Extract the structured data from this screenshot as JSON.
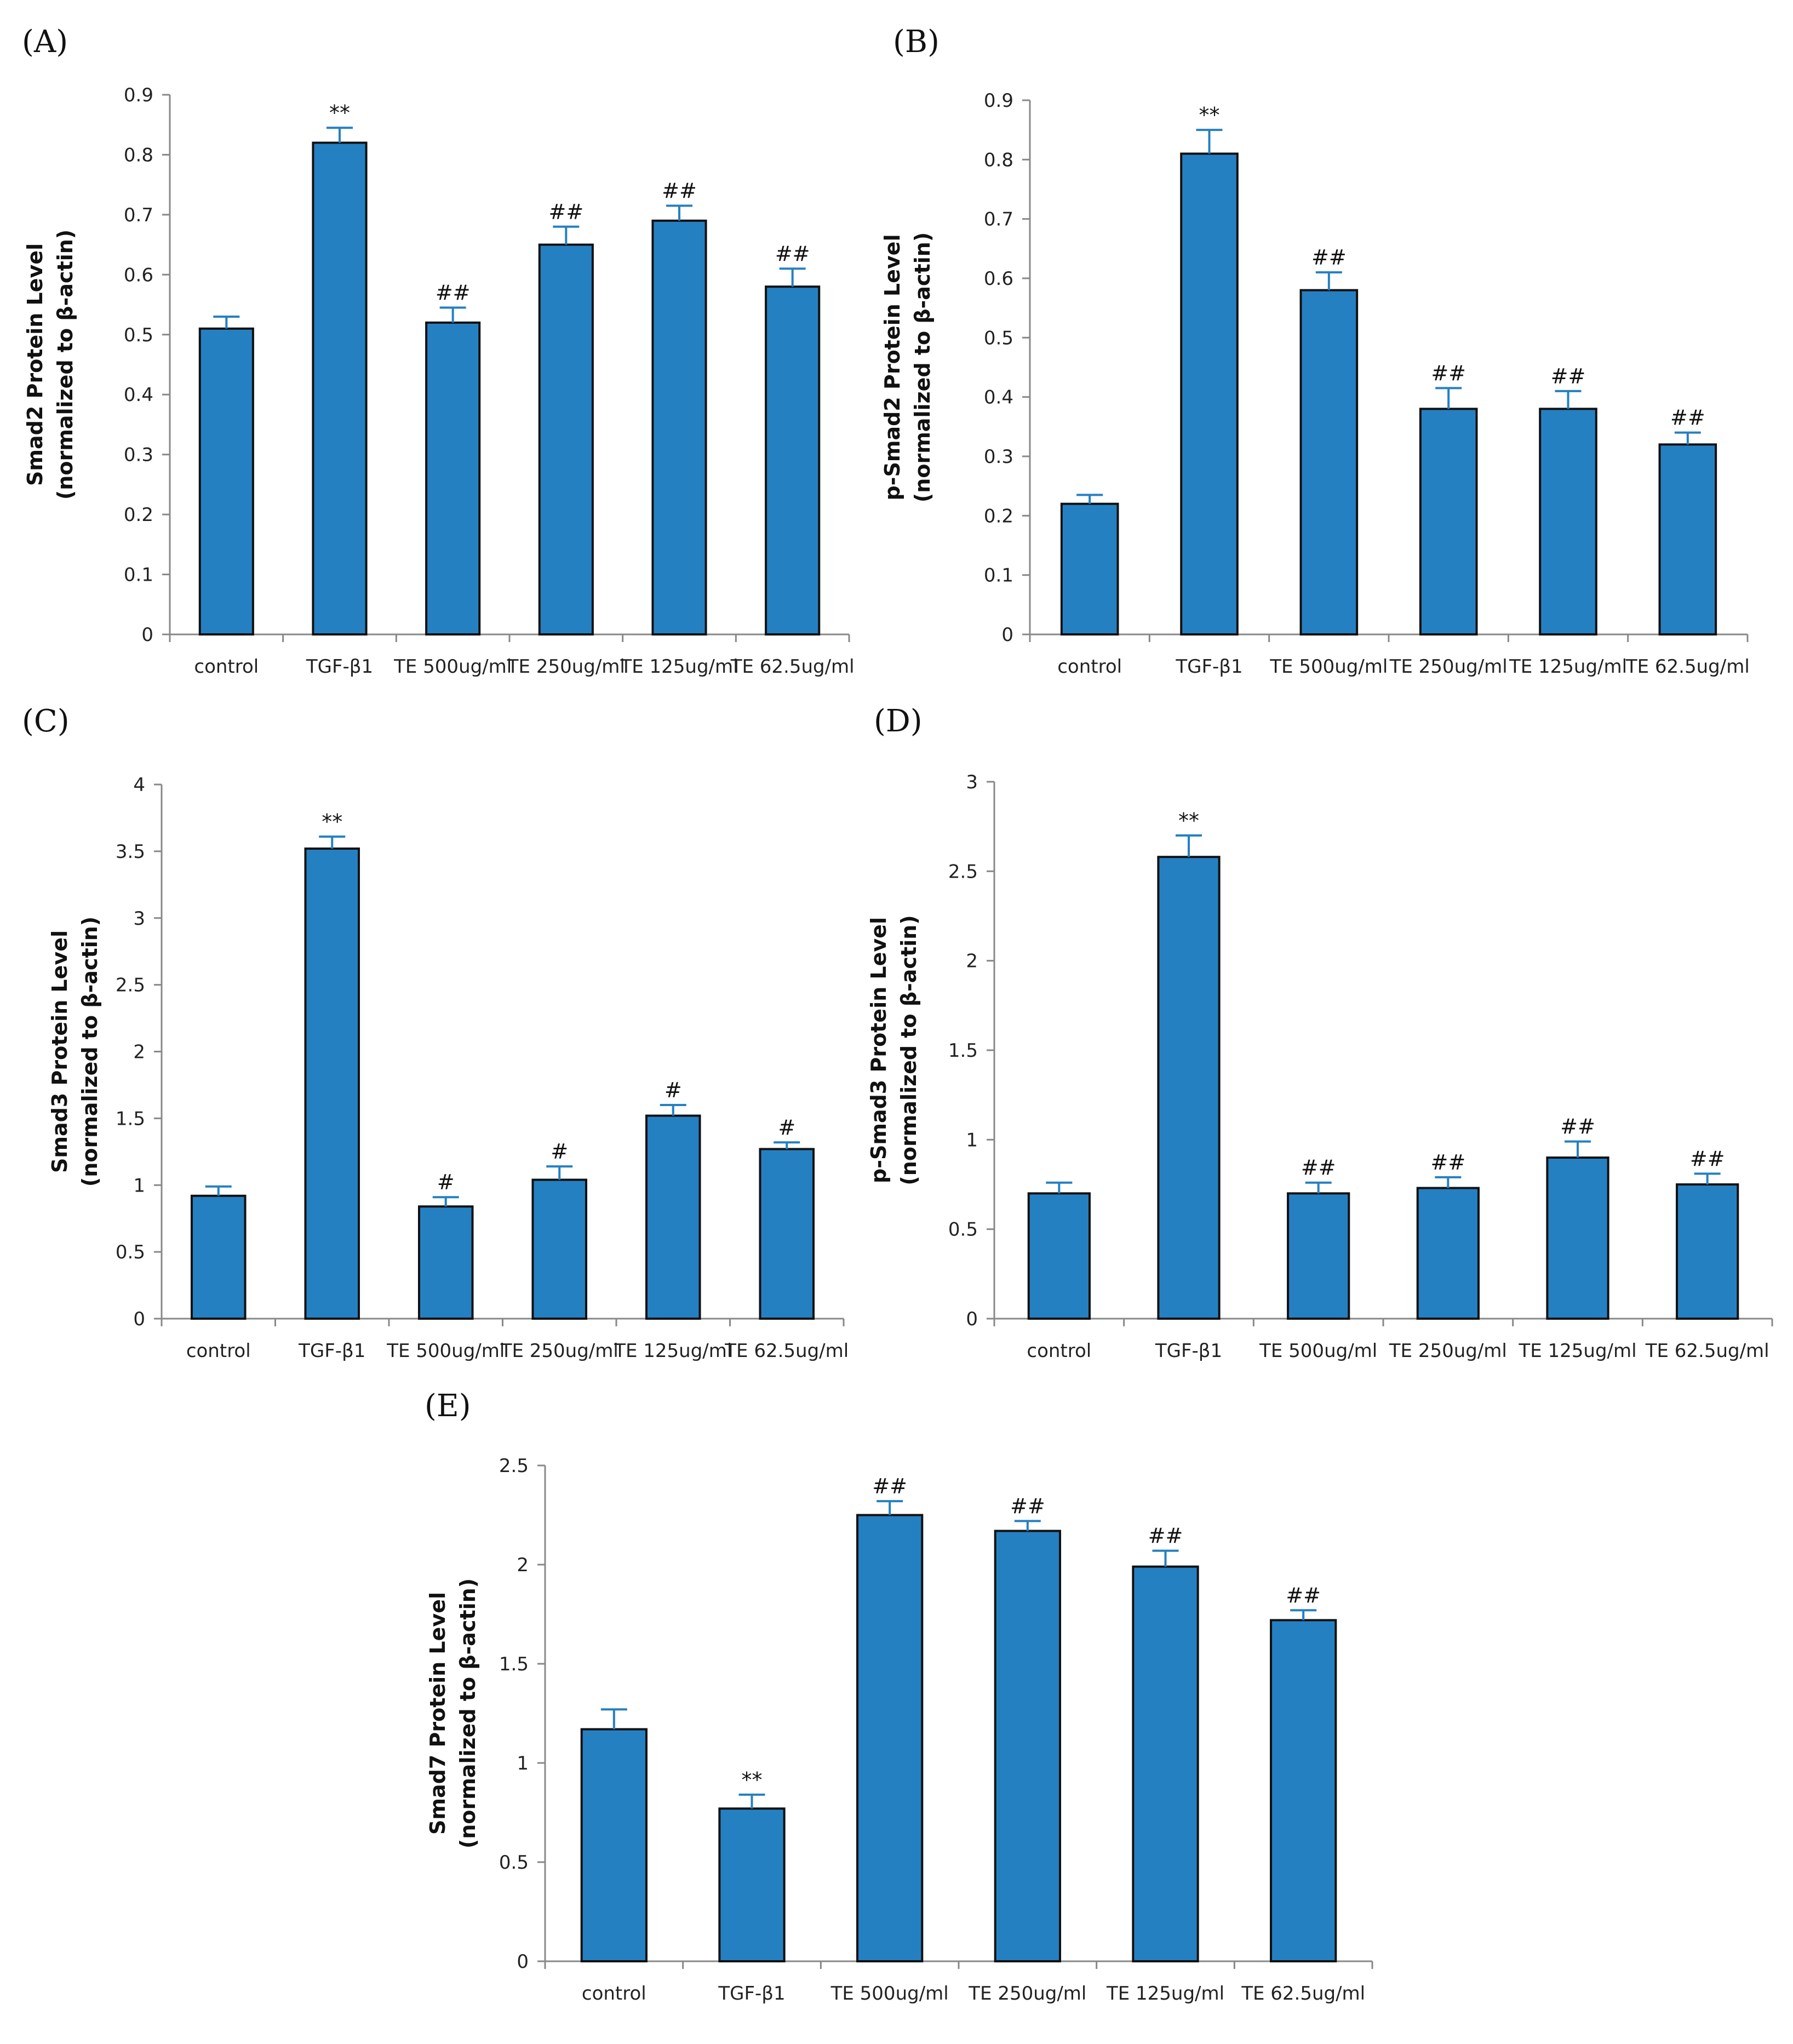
{
  "chart_data": [
    {
      "panel_label": "(A)",
      "type": "bar",
      "ylabel_line1": "Smad2 Protein Level",
      "ylabel_line2": "(normalized to β-actin)",
      "categories": [
        "control",
        "TGF-β1",
        "TE 500ug/ml",
        "TE 250ug/ml",
        "TE 125ug/ml",
        "TE 62.5ug/ml"
      ],
      "values": [
        0.51,
        0.82,
        0.52,
        0.65,
        0.69,
        0.58
      ],
      "errors": [
        0.02,
        0.025,
        0.025,
        0.03,
        0.025,
        0.03
      ],
      "annotations": [
        "",
        "**",
        "##",
        "##",
        "##",
        "##"
      ],
      "ylim": [
        0,
        0.9
      ],
      "yticks": [
        "0",
        "0.1",
        "0.2",
        "0.3",
        "0.4",
        "0.5",
        "0.6",
        "0.7",
        "0.8",
        "0.9"
      ],
      "grid": false,
      "bar_color": "#2580c2"
    },
    {
      "panel_label": "(B)",
      "type": "bar",
      "ylabel_line1": "p-Smad2 Protein Level",
      "ylabel_line2": "(normalized to β-actin)",
      "categories": [
        "control",
        "TGF-β1",
        "TE 500ug/ml",
        "TE 250ug/ml",
        "TE 125ug/ml",
        "TE 62.5ug/ml"
      ],
      "values": [
        0.22,
        0.81,
        0.58,
        0.38,
        0.38,
        0.32
      ],
      "errors": [
        0.015,
        0.04,
        0.03,
        0.035,
        0.03,
        0.02
      ],
      "annotations": [
        "",
        "**",
        "##",
        "##",
        "##",
        "##"
      ],
      "ylim": [
        0,
        0.9
      ],
      "yticks": [
        "0",
        "0.1",
        "0.2",
        "0.3",
        "0.4",
        "0.5",
        "0.6",
        "0.7",
        "0.8",
        "0.9"
      ],
      "grid": false,
      "bar_color": "#2580c2"
    },
    {
      "panel_label": "(C)",
      "type": "bar",
      "ylabel_line1": "Smad3 Protein Level",
      "ylabel_line2": "(normalized to β-actin)",
      "categories": [
        "control",
        "TGF-β1",
        "TE 500ug/ml",
        "TE 250ug/ml",
        "TE 125ug/ml",
        "TE 62.5ug/ml"
      ],
      "values": [
        0.92,
        3.52,
        0.84,
        1.04,
        1.52,
        1.27
      ],
      "errors": [
        0.07,
        0.09,
        0.07,
        0.1,
        0.08,
        0.05
      ],
      "annotations": [
        "",
        "**",
        "#",
        "#",
        "#",
        "#"
      ],
      "ylim": [
        0,
        4
      ],
      "yticks": [
        "0",
        "0.5",
        "1",
        "1.5",
        "2",
        "2.5",
        "3",
        "3.5",
        "4"
      ],
      "grid": false,
      "bar_color": "#2580c2"
    },
    {
      "panel_label": "(D)",
      "type": "bar",
      "ylabel_line1": "p-Smad3 Protein Level",
      "ylabel_line2": "(normalized to β-actin)",
      "categories": [
        "control",
        "TGF-β1",
        "TE 500ug/ml",
        "TE 250ug/ml",
        "TE 125ug/ml",
        "TE 62.5ug/ml"
      ],
      "values": [
        0.7,
        2.58,
        0.7,
        0.73,
        0.9,
        0.75
      ],
      "errors": [
        0.06,
        0.12,
        0.06,
        0.06,
        0.09,
        0.06
      ],
      "annotations": [
        "",
        "**",
        "##",
        "##",
        "##",
        "##"
      ],
      "ylim": [
        0,
        3
      ],
      "yticks": [
        "0",
        "0.5",
        "1",
        "1.5",
        "2",
        "2.5",
        "3"
      ],
      "grid": false,
      "bar_color": "#2580c2"
    },
    {
      "panel_label": "(E)",
      "type": "bar",
      "ylabel_line1": "Smad7 Protein Level",
      "ylabel_line2": "(normalized to β-actin)",
      "categories": [
        "control",
        "TGF-β1",
        "TE 500ug/ml",
        "TE 250ug/ml",
        "TE 125ug/ml",
        "TE 62.5ug/ml"
      ],
      "values": [
        1.17,
        0.77,
        2.25,
        2.17,
        1.99,
        1.72
      ],
      "errors": [
        0.1,
        0.07,
        0.07,
        0.05,
        0.08,
        0.05
      ],
      "annotations": [
        "",
        "**",
        "##",
        "##",
        "##",
        "##"
      ],
      "ylim": [
        0,
        2.5
      ],
      "yticks": [
        "0",
        "0.5",
        "1",
        "1.5",
        "2",
        "2.5"
      ],
      "grid": false,
      "bar_color": "#2580c2"
    }
  ]
}
